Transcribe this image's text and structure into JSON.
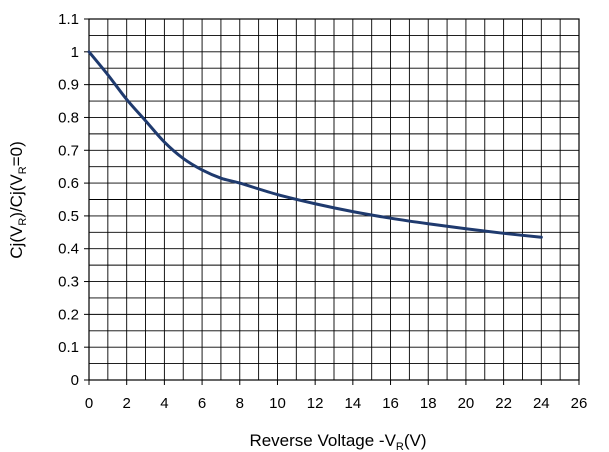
{
  "chart_data": {
    "type": "line",
    "xlabel": {
      "main": "Reverse Voltage   -V",
      "sub": "R",
      "tail": "(V)"
    },
    "ylabel": {
      "p1": "Cj(V",
      "s1": "R",
      "p2": ")/Cj(V",
      "s2": "R",
      "p3": "=0)"
    },
    "xlim": [
      0,
      26
    ],
    "ylim": [
      0,
      1.1
    ],
    "x_ticks": [
      "0",
      "2",
      "4",
      "6",
      "8",
      "10",
      "12",
      "14",
      "16",
      "18",
      "20",
      "22",
      "24",
      "26"
    ],
    "y_ticks": [
      "0",
      "0.1",
      "0.2",
      "0.3",
      "0.4",
      "0.5",
      "0.6",
      "0.7",
      "0.8",
      "0.9",
      "1",
      "1.1"
    ],
    "grid": true,
    "minor_grid_x_step": 1,
    "minor_grid_y_step": 0.05,
    "line_color": "#1f3a6e",
    "series": [
      {
        "x": [
          0,
          1,
          2,
          3,
          4,
          5,
          6,
          7,
          8,
          10,
          12,
          14,
          16,
          18,
          20,
          22,
          24
        ],
        "y": [
          1.0,
          0.93,
          0.855,
          0.79,
          0.725,
          0.675,
          0.64,
          0.615,
          0.6,
          0.565,
          0.537,
          0.513,
          0.493,
          0.476,
          0.461,
          0.447,
          0.435
        ]
      }
    ]
  }
}
